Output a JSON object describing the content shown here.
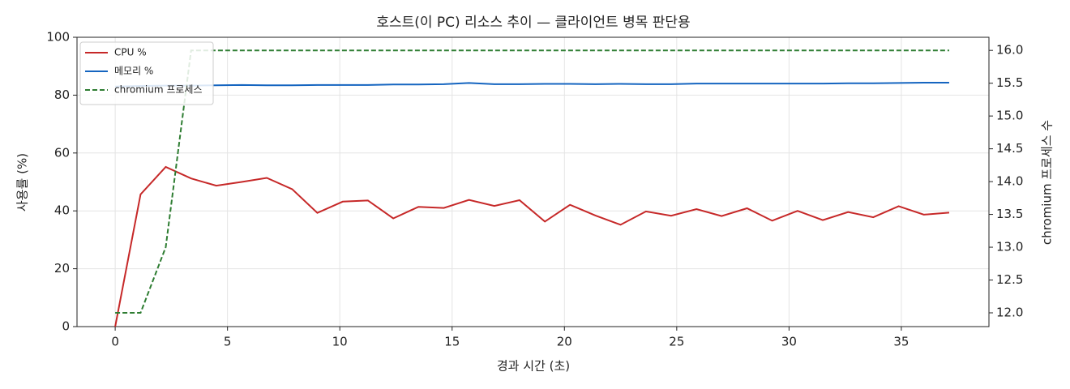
{
  "chart_data": {
    "type": "line",
    "title": "호스트(이 PC) 리소스 추이 — 클라이언트 병목 판단용",
    "x_label": "경과 시간 (초)",
    "y_label": "사용률 (%)",
    "y2_label": "chromium 프로세스 수",
    "x": [
      0,
      1.13,
      2.25,
      3.38,
      4.5,
      5.63,
      6.75,
      7.88,
      9.0,
      10.13,
      11.25,
      12.38,
      13.5,
      14.63,
      15.75,
      16.88,
      18.0,
      19.13,
      20.25,
      21.38,
      22.5,
      23.63,
      24.75,
      25.88,
      27.0,
      28.13,
      29.25,
      30.38,
      31.5,
      32.63,
      33.75,
      34.88,
      36.0,
      37.13
    ],
    "series": [
      {
        "name": "CPU %",
        "color": "#c62828",
        "values": [
          0,
          45.7,
          55.2,
          51.2,
          48.7,
          50.0,
          51.4,
          47.5,
          39.3,
          43.2,
          43.6,
          37.4,
          41.4,
          41.0,
          43.8,
          41.7,
          43.7,
          36.3,
          42.1,
          38.4,
          35.2,
          39.8,
          38.3,
          40.6,
          38.2,
          40.9,
          36.6,
          40.0,
          36.8,
          39.6,
          37.8,
          41.6,
          38.7,
          39.4
        ]
      },
      {
        "name": "메모리 %",
        "color": "#1565c0",
        "values": [
          83.0,
          83.2,
          83.3,
          83.3,
          83.4,
          83.5,
          83.4,
          83.4,
          83.5,
          83.5,
          83.5,
          83.7,
          83.7,
          83.8,
          84.2,
          83.8,
          83.8,
          83.9,
          83.9,
          83.8,
          83.9,
          83.8,
          83.8,
          84.0,
          84.0,
          84.0,
          84.0,
          84.0,
          84.0,
          84.1,
          84.1,
          84.2,
          84.3,
          84.3
        ]
      },
      {
        "name": "chromium 프로세스",
        "color": "#2e7d32",
        "linestyle": "dashed",
        "axis": "y2",
        "values": [
          12,
          12,
          13,
          16,
          16,
          16,
          16,
          16,
          16,
          16,
          16,
          16,
          16,
          16,
          16,
          16,
          16,
          16,
          16,
          16,
          16,
          16,
          16,
          16,
          16,
          16,
          16,
          16,
          16,
          16,
          16,
          16,
          16,
          16
        ]
      }
    ],
    "xlim": [
      -1.7,
      38.9
    ],
    "xticks": [
      0,
      5,
      10,
      15,
      20,
      25,
      30,
      35
    ],
    "ylim": [
      0,
      100
    ],
    "yticks": [
      0,
      20,
      40,
      60,
      80,
      100
    ],
    "y2lim": [
      11.79,
      16.2
    ],
    "y2ticks": [
      {
        "value": 12,
        "label": "12.0"
      },
      {
        "value": 12.5,
        "label": "12.5"
      },
      {
        "value": 13,
        "label": "13.0"
      },
      {
        "value": 13.5,
        "label": "13.5"
      },
      {
        "value": 14,
        "label": "14.0"
      },
      {
        "value": 14.5,
        "label": "14.5"
      },
      {
        "value": 15,
        "label": "15.0"
      },
      {
        "value": 15.5,
        "label": "15.5"
      },
      {
        "value": 16,
        "label": "16.0"
      }
    ],
    "grid": true,
    "legend": "upper left"
  }
}
